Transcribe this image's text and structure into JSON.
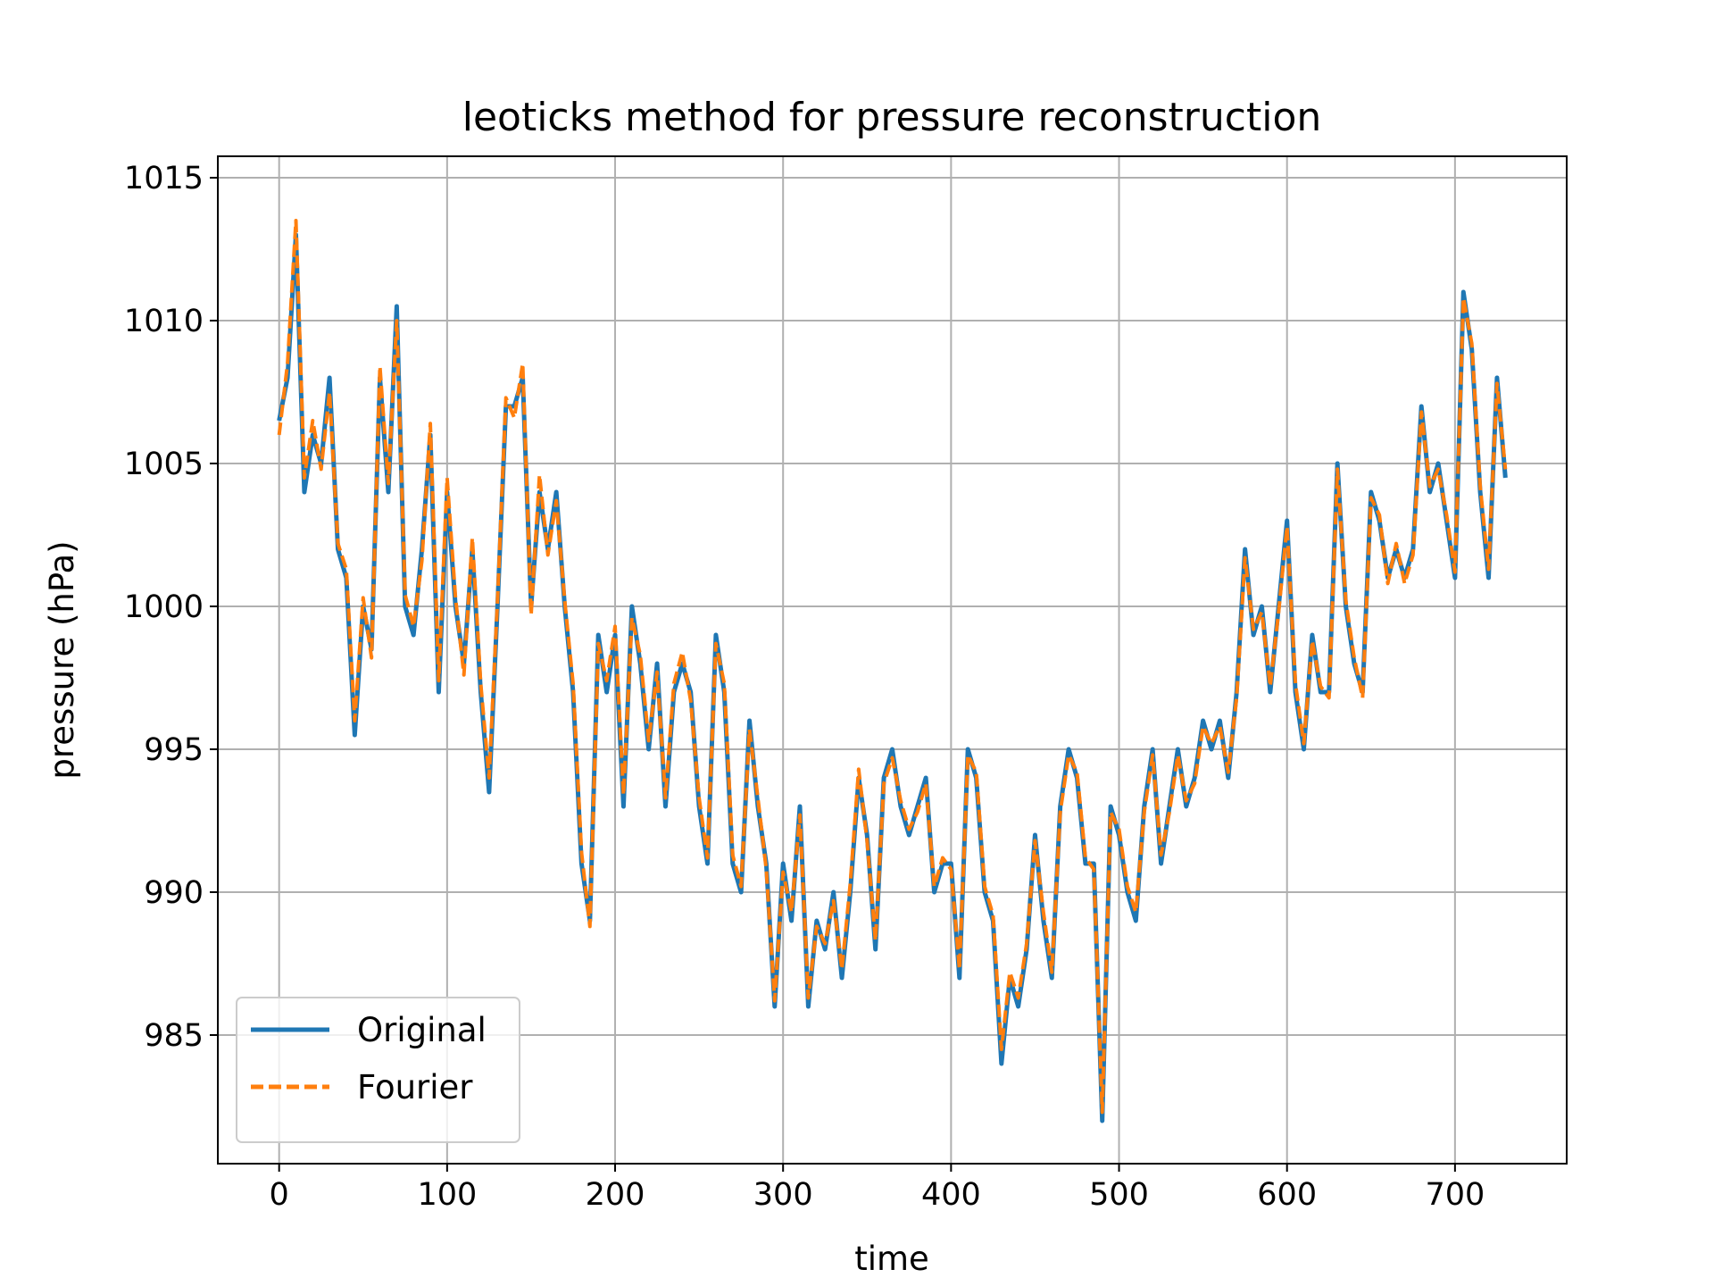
{
  "chart_data": {
    "type": "line",
    "title": "leoticks method for pressure reconstruction",
    "x_label": "time",
    "y_label": "pressure (hPa)",
    "x": [
      0,
      5,
      10,
      15,
      20,
      25,
      30,
      35,
      40,
      45,
      50,
      55,
      60,
      65,
      70,
      75,
      80,
      85,
      90,
      95,
      100,
      105,
      110,
      115,
      120,
      125,
      130,
      135,
      140,
      145,
      150,
      155,
      160,
      165,
      170,
      175,
      180,
      185,
      190,
      195,
      200,
      205,
      210,
      215,
      220,
      225,
      230,
      235,
      240,
      245,
      250,
      255,
      260,
      265,
      270,
      275,
      280,
      285,
      290,
      295,
      300,
      305,
      310,
      315,
      320,
      325,
      330,
      335,
      340,
      345,
      350,
      355,
      360,
      365,
      370,
      375,
      380,
      385,
      390,
      395,
      400,
      405,
      410,
      415,
      420,
      425,
      430,
      435,
      440,
      445,
      450,
      455,
      460,
      465,
      470,
      475,
      480,
      485,
      490,
      495,
      500,
      505,
      510,
      515,
      520,
      525,
      530,
      535,
      540,
      545,
      550,
      555,
      560,
      565,
      570,
      575,
      580,
      585,
      590,
      595,
      600,
      605,
      610,
      615,
      620,
      625,
      630,
      635,
      640,
      645,
      650,
      655,
      660,
      665,
      670,
      675,
      680,
      685,
      690,
      695,
      700,
      705,
      710,
      715,
      720,
      725,
      730
    ],
    "series": [
      {
        "name": "Original",
        "color": "#1f77b4",
        "style": "solid",
        "values": [
          1006.5,
          1008,
          1013,
          1004,
          1006,
          1005,
          1008,
          1002,
          1001,
          995.5,
          1000,
          998.5,
          1008,
          1004,
          1010.5,
          1000,
          999,
          1002,
          1006,
          997,
          1004,
          1000,
          998,
          1002,
          997,
          993.5,
          1000,
          1007,
          1007,
          1008,
          1000,
          1004,
          1002,
          1004,
          1000,
          997,
          991,
          989,
          999,
          997,
          999,
          993,
          1000,
          998,
          995,
          998,
          993,
          997,
          998,
          997,
          993,
          991,
          999,
          997,
          991,
          990,
          996,
          993,
          991,
          986,
          991,
          989,
          993,
          986,
          989,
          988,
          990,
          987,
          990,
          994,
          992,
          988,
          994,
          995,
          993,
          992,
          993,
          994,
          990,
          991,
          991,
          987,
          995,
          994,
          990,
          989,
          984,
          987,
          986,
          988,
          992,
          989,
          987,
          993,
          995,
          994,
          991,
          991,
          982,
          993,
          992,
          990,
          989,
          993,
          995,
          991,
          993,
          995,
          993,
          994,
          996,
          995,
          996,
          994,
          997,
          1002,
          999,
          1000,
          997,
          1000,
          1003,
          997,
          995,
          999,
          997,
          997,
          1005,
          1000,
          998,
          997,
          1004,
          1003,
          1001,
          1002,
          1001,
          1002,
          1007,
          1004,
          1005,
          1003,
          1001,
          1011,
          1009,
          1004,
          1001,
          1008,
          1004.5
        ]
      },
      {
        "name": "Fourier",
        "color": "#ff7f0e",
        "style": "dashed",
        "values": [
          1006,
          1008.5,
          1013.5,
          1004.5,
          1006.5,
          1004.8,
          1007.5,
          1002.2,
          1001.3,
          996,
          1000.3,
          998.2,
          1008.4,
          1004.3,
          1010,
          1000.4,
          999.3,
          1001.6,
          1006.4,
          997.4,
          1004.5,
          1000.3,
          997.6,
          1002.4,
          997.3,
          994,
          1000.2,
          1007.3,
          1006.6,
          1008.5,
          999.7,
          1004.6,
          1001.8,
          1003.7,
          1000.2,
          997.3,
          991.4,
          988.8,
          998.7,
          997.4,
          999.3,
          993.4,
          999.6,
          998.3,
          995.3,
          997.7,
          993.3,
          997.3,
          998.4,
          996.7,
          993.3,
          991.2,
          998.7,
          997.3,
          991.3,
          990.2,
          995.7,
          993.3,
          990.8,
          986.2,
          990.7,
          989.3,
          992.7,
          986.3,
          988.8,
          988.2,
          989.7,
          987.3,
          990.3,
          994.3,
          991.8,
          988.3,
          993.8,
          994.7,
          993.2,
          992.2,
          992.8,
          993.8,
          990.2,
          991.2,
          990.8,
          987.3,
          994.8,
          994.2,
          990.2,
          989.2,
          984.5,
          987.2,
          986.3,
          988.2,
          991.8,
          989.3,
          987.2,
          992.8,
          994.8,
          994.2,
          991.2,
          990.8,
          982.3,
          992.8,
          992.2,
          990.2,
          989.3,
          992.8,
          994.8,
          991.3,
          992.8,
          994.8,
          993.2,
          993.8,
          995.8,
          995.2,
          995.8,
          994.2,
          996.8,
          1001.7,
          999.2,
          999.8,
          997.2,
          999.8,
          1002.8,
          997.3,
          995.2,
          998.8,
          997.2,
          996.8,
          1004.8,
          1000.2,
          998.2,
          996.8,
          1003.8,
          1003.2,
          1000.8,
          1002.2,
          1000.8,
          1001.8,
          1006.8,
          1004.2,
          1004.8,
          1003.2,
          1001.2,
          1010.8,
          1009.2,
          1004.2,
          1001.3,
          1007.8,
          1004.8
        ]
      }
    ],
    "xlim": [
      -36.5,
      766.5
    ],
    "ylim": [
      980.5,
      1015.75
    ],
    "xticks": [
      0,
      100,
      200,
      300,
      400,
      500,
      600,
      700
    ],
    "yticks": [
      985,
      990,
      995,
      1000,
      1005,
      1010,
      1015
    ],
    "grid": true,
    "legend": "lower left"
  }
}
